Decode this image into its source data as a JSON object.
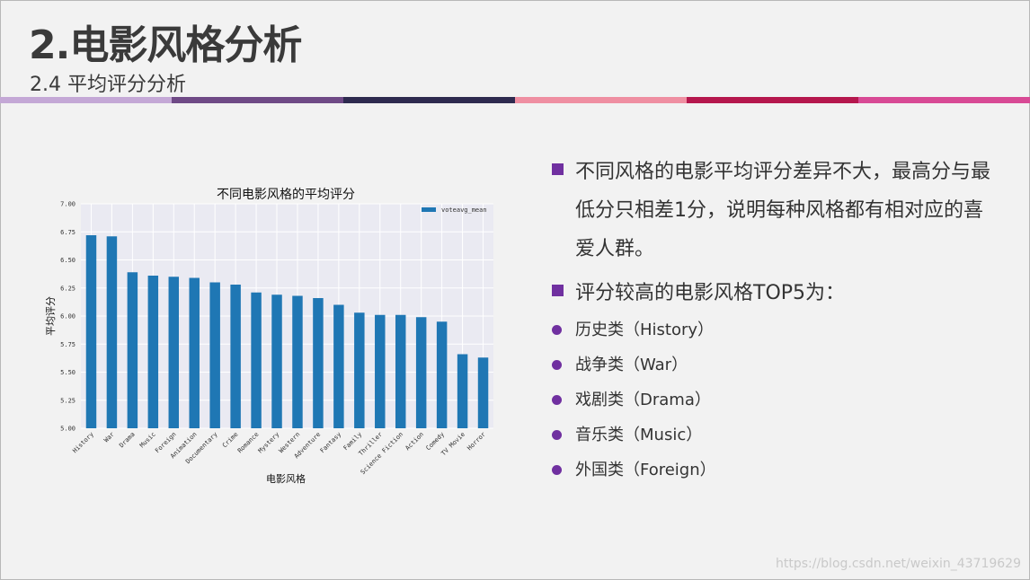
{
  "slide": {
    "title": "2.电影风格分析",
    "subtitle": "2.4 平均评分分析",
    "band_colors": [
      "#c4a8d6",
      "#6f4a86",
      "#2e2a4f",
      "#ef8fa2",
      "#b5174d",
      "#d84a95"
    ]
  },
  "bullets": {
    "main": [
      "不同风格的电影平均评分差异不大，最高分与最低分只相差1分，说明每种风格都有相对应的喜爱人群。",
      "评分较高的电影风格TOP5为："
    ],
    "sub": [
      "历史类（History）",
      "战争类（War）",
      "戏剧类（Drama）",
      "音乐类（Music）",
      "外国类（Foreign）"
    ]
  },
  "watermark": "https://blog.csdn.net/weixin_43719629",
  "colors": {
    "bar": "#1f77b4",
    "accent": "#7030a0",
    "plot_bg": "#eaeaf2"
  },
  "chart_data": {
    "type": "bar",
    "title": "不同电影风格的平均评分",
    "xlabel": "电影风格",
    "ylabel": "平均评分",
    "ylim": [
      5.0,
      7.0
    ],
    "yticks": [
      "5.00",
      "5.25",
      "5.50",
      "5.75",
      "6.00",
      "6.25",
      "6.50",
      "6.75",
      "7.00"
    ],
    "grid": true,
    "legend_position": "top-right",
    "categories": [
      "History",
      "War",
      "Drama",
      "Music",
      "Foreign",
      "Animation",
      "Documentary",
      "Crime",
      "Romance",
      "Mystery",
      "Western",
      "Adventure",
      "Fantasy",
      "Family",
      "Thriller",
      "Science Fiction",
      "Action",
      "Comedy",
      "TV Movie",
      "Horror"
    ],
    "series": [
      {
        "name": "voteavg_mean",
        "values": [
          6.72,
          6.71,
          6.39,
          6.36,
          6.35,
          6.34,
          6.3,
          6.28,
          6.21,
          6.19,
          6.18,
          6.16,
          6.1,
          6.03,
          6.01,
          6.01,
          5.99,
          5.95,
          5.66,
          5.63
        ]
      }
    ]
  }
}
